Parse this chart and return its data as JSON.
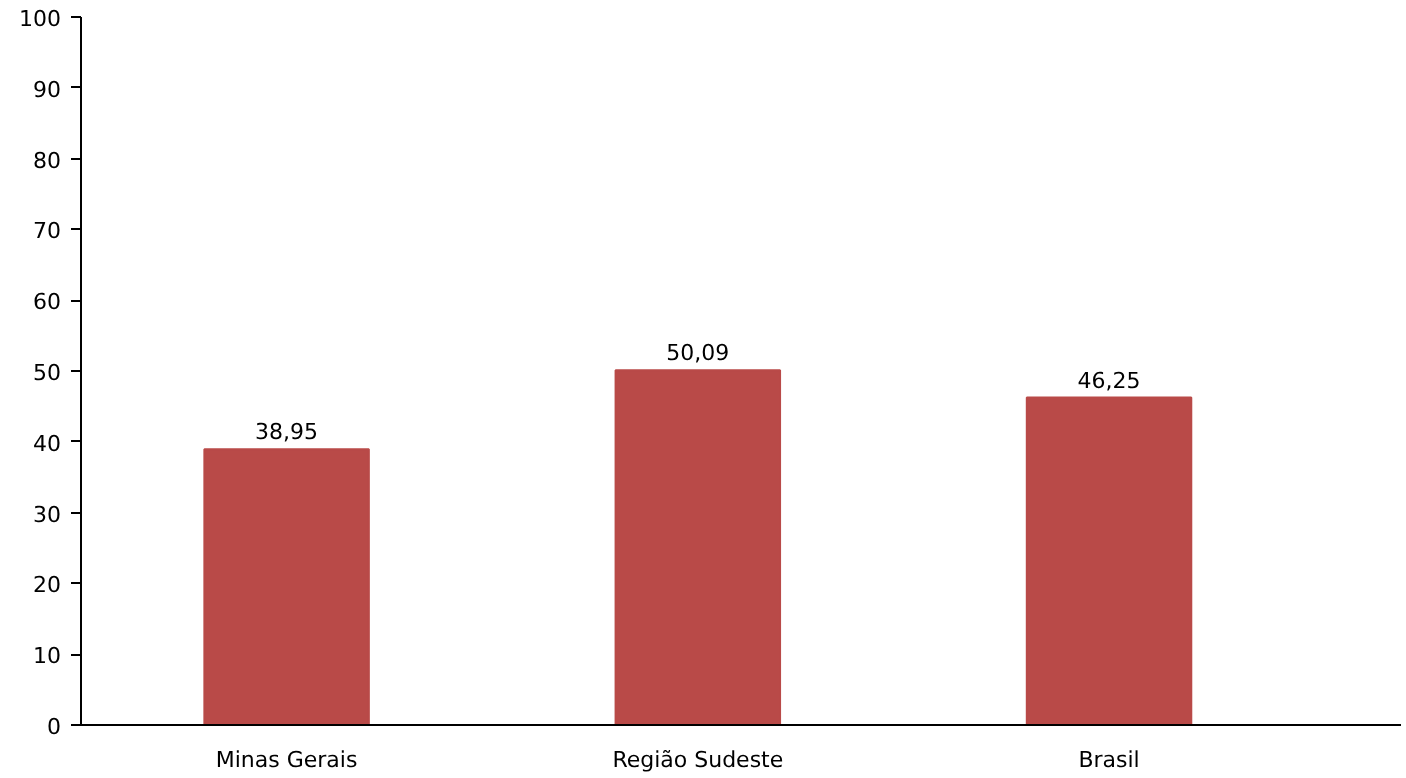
{
  "chart_data": {
    "type": "bar",
    "categories": [
      "Minas Gerais",
      "Região Sudeste",
      "Brasil"
    ],
    "values": [
      38.95,
      50.09,
      46.25
    ],
    "value_labels": [
      "38,95",
      "50,09",
      "46,25"
    ],
    "color": "#b94a48",
    "ylim": [
      0,
      100
    ],
    "yticks": [
      0,
      10,
      20,
      30,
      40,
      50,
      60,
      70,
      80,
      90,
      100
    ],
    "grid": false
  }
}
